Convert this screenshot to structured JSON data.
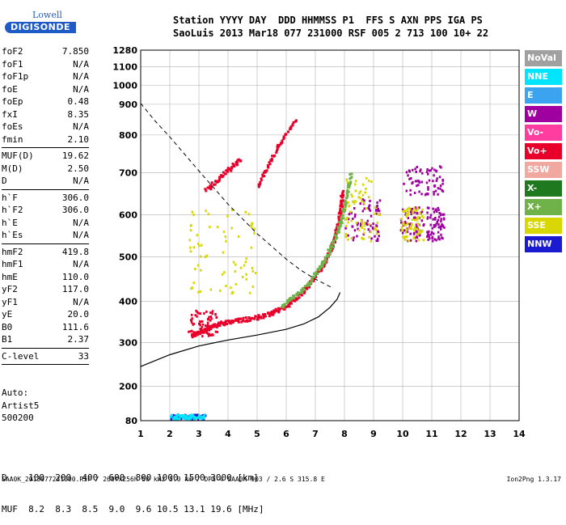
{
  "logo": {
    "line1": "Lowell",
    "line2": "DIGISONDE"
  },
  "header": {
    "line1": "Station YYYY DAY  DDD HHMMSS P1  FFS S AXN PPS IGA PS",
    "line2": "SaoLuis 2013 Mar18 077 231000 RSF 005 2 713 100 10+ 22"
  },
  "params": [
    {
      "label": "foF2",
      "value": "7.850"
    },
    {
      "label": "foF1",
      "value": "N/A"
    },
    {
      "label": "foF1p",
      "value": "N/A"
    },
    {
      "label": "foE",
      "value": "N/A"
    },
    {
      "label": "foEp",
      "value": "0.48"
    },
    {
      "label": "fxI",
      "value": "8.35"
    },
    {
      "label": "foEs",
      "value": "N/A"
    },
    {
      "label": "fmin",
      "value": "2.10"
    },
    {
      "divider": true
    },
    {
      "label": "MUF(D)",
      "value": "19.62"
    },
    {
      "label": "M(D)",
      "value": "2.50"
    },
    {
      "label": "D",
      "value": "N/A"
    },
    {
      "divider": true
    },
    {
      "label": "h`F",
      "value": "306.0"
    },
    {
      "label": "h`F2",
      "value": "306.0"
    },
    {
      "label": "h`E",
      "value": "N/A"
    },
    {
      "label": "h`Es",
      "value": "N/A"
    },
    {
      "divider": true
    },
    {
      "label": "hmF2",
      "value": "419.8"
    },
    {
      "label": "hmF1",
      "value": "N/A"
    },
    {
      "label": "hmE",
      "value": "110.0"
    },
    {
      "label": "yF2",
      "value": "117.0"
    },
    {
      "label": "yF1",
      "value": "N/A"
    },
    {
      "label": "yE",
      "value": "20.0"
    },
    {
      "label": "B0",
      "value": "111.6"
    },
    {
      "label": "B1",
      "value": "2.37"
    },
    {
      "divider": true
    },
    {
      "label": "C-level",
      "value": "33"
    },
    {
      "divider": true
    }
  ],
  "auto": {
    "line1": "Auto:",
    "line2": "Artist5",
    "line3": "500200"
  },
  "freq_table": {
    "row1": "D    100  200  400  600  800 1000 1500 3000 [km]",
    "row2": "MUF  8.2  8.3  8.5  9.0  9.6 10.5 13.1 19.6 [MHz]"
  },
  "footer": {
    "left": "SAA0K_2013077231000.RSF / 260fx256h 50 kHz 5.0 km / DPS-4 SAA0K 903 / 2.6 S 315.8 E",
    "right": "Ion2Png 1.3.17"
  },
  "legend": [
    {
      "label": "NoVal",
      "color": "#a0a0a0"
    },
    {
      "label": "NNE",
      "color": "#00e5ff"
    },
    {
      "label": "E",
      "color": "#3ba3f0"
    },
    {
      "label": "W",
      "color": "#a000a0"
    },
    {
      "label": "Vo-",
      "color": "#ff3ca0"
    },
    {
      "label": "Vo+",
      "color": "#e8002a"
    },
    {
      "label": "SSW",
      "color": "#f0a8a0"
    },
    {
      "label": "X-",
      "color": "#1f7a1f"
    },
    {
      "label": "X+",
      "color": "#6fb24a"
    },
    {
      "label": "SSE",
      "color": "#d8d800"
    },
    {
      "label": "NNW",
      "color": "#1a1ad0"
    }
  ],
  "chart_data": {
    "type": "scatter",
    "title": "",
    "xlabel": "",
    "ylabel": "",
    "xlim": [
      1,
      14
    ],
    "ylim": [
      80,
      1280
    ],
    "x_ticks": [
      1,
      2,
      3,
      4,
      5,
      6,
      7,
      8,
      9,
      10,
      11,
      12,
      13,
      14
    ],
    "y_ticks": [
      80,
      200,
      300,
      400,
      500,
      600,
      700,
      800,
      900,
      1000,
      1100,
      1280
    ],
    "grid": true,
    "y_scale": "nonlinear",
    "y_scale_anchors": [
      [
        80,
        0
      ],
      [
        200,
        0.093
      ],
      [
        300,
        0.211
      ],
      [
        400,
        0.322
      ],
      [
        500,
        0.442
      ],
      [
        600,
        0.556
      ],
      [
        700,
        0.669
      ],
      [
        800,
        0.771
      ],
      [
        900,
        0.854
      ],
      [
        1000,
        0.905
      ],
      [
        1100,
        0.955
      ],
      [
        1280,
        1.0
      ]
    ],
    "traces": [
      {
        "name": "o-trace",
        "color": "#e8002a",
        "points": [
          [
            2.7,
            318
          ],
          [
            3.0,
            328
          ],
          [
            3.3,
            338
          ],
          [
            3.6,
            346
          ],
          [
            4.0,
            352
          ],
          [
            4.5,
            358
          ],
          [
            5.0,
            364
          ],
          [
            5.5,
            374
          ],
          [
            6.0,
            392
          ],
          [
            6.5,
            420
          ],
          [
            6.9,
            452
          ],
          [
            7.2,
            482
          ],
          [
            7.4,
            505
          ],
          [
            7.6,
            540
          ],
          [
            7.75,
            580
          ],
          [
            7.85,
            618
          ],
          [
            7.9,
            660
          ]
        ]
      },
      {
        "name": "x-trace",
        "color": "#6fb24a",
        "points": [
          [
            5.8,
            390
          ],
          [
            6.2,
            410
          ],
          [
            6.7,
            440
          ],
          [
            7.1,
            475
          ],
          [
            7.4,
            510
          ],
          [
            7.7,
            555
          ],
          [
            7.9,
            600
          ],
          [
            8.05,
            650
          ],
          [
            8.2,
            700
          ]
        ]
      },
      {
        "name": "o-2F",
        "color": "#e8002a",
        "points": [
          [
            3.2,
            660
          ],
          [
            3.6,
            685
          ],
          [
            4.0,
            712
          ],
          [
            4.4,
            740
          ]
        ]
      },
      {
        "name": "o-2F-upper",
        "color": "#e8002a",
        "points": [
          [
            5.0,
            670
          ],
          [
            5.4,
            730
          ],
          [
            5.8,
            790
          ],
          [
            6.3,
            850
          ]
        ]
      }
    ],
    "profile_curve": {
      "name": "profile",
      "color": "#000000",
      "points": [
        [
          1.0,
          245
        ],
        [
          2.0,
          272
        ],
        [
          3.0,
          292
        ],
        [
          4.0,
          306
        ],
        [
          5.0,
          318
        ],
        [
          6.0,
          332
        ],
        [
          6.6,
          345
        ],
        [
          7.1,
          362
        ],
        [
          7.5,
          385
        ],
        [
          7.75,
          405
        ],
        [
          7.85,
          420
        ]
      ]
    },
    "muf_curve": {
      "name": "muf",
      "color": "#000000",
      "dash": true,
      "points": [
        [
          1.0,
          905
        ],
        [
          1.5,
          845
        ],
        [
          2.0,
          795
        ],
        [
          2.5,
          750
        ],
        [
          3.0,
          705
        ],
        [
          3.5,
          665
        ],
        [
          4.0,
          625
        ],
        [
          4.5,
          590
        ],
        [
          5.0,
          555
        ],
        [
          5.5,
          525
        ],
        [
          6.0,
          495
        ],
        [
          6.5,
          470
        ],
        [
          7.0,
          450
        ],
        [
          7.6,
          430
        ]
      ]
    },
    "clusters": [
      {
        "color": "#a000a0",
        "x": [
          9.9,
          10.7
        ],
        "y": [
          540,
          620
        ]
      },
      {
        "color": "#d8d800",
        "x": [
          9.9,
          10.7
        ],
        "y": [
          540,
          620
        ]
      },
      {
        "color": "#a000a0",
        "x": [
          10.8,
          11.4
        ],
        "y": [
          540,
          620
        ]
      },
      {
        "color": "#a000a0",
        "x": [
          10.0,
          11.4
        ],
        "y": [
          650,
          720
        ]
      },
      {
        "color": "#a000a0",
        "x": [
          8.0,
          9.2
        ],
        "y": [
          540,
          640
        ]
      },
      {
        "color": "#d8d800",
        "x": [
          8.0,
          9.2
        ],
        "y": [
          540,
          700
        ]
      },
      {
        "color": "#1a1ad0",
        "x": [
          2.0,
          3.2
        ],
        "y": [
          88,
          105
        ]
      },
      {
        "color": "#00e5ff",
        "x": [
          2.0,
          3.2
        ],
        "y": [
          88,
          105
        ]
      },
      {
        "color": "#d8d800",
        "x": [
          2.6,
          5.0
        ],
        "y": [
          420,
          620
        ]
      },
      {
        "color": "#e8002a",
        "x": [
          2.6,
          3.6
        ],
        "y": [
          318,
          380
        ]
      }
    ]
  }
}
